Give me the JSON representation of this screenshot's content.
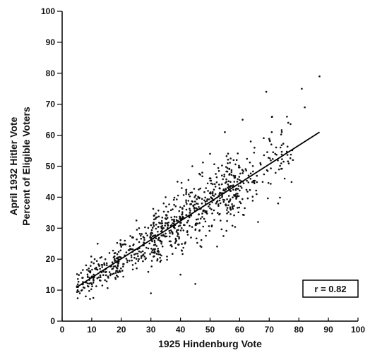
{
  "chart_data": {
    "type": "scatter",
    "title": "",
    "xlabel": "1925 Hindenburg Vote",
    "ylabel_lines": [
      "April 1932 Hitler Vote",
      "Percent of Eligible Voters"
    ],
    "xlim": [
      0,
      100
    ],
    "ylim": [
      0,
      100
    ],
    "xticks": [
      0,
      10,
      20,
      30,
      40,
      50,
      60,
      70,
      80,
      90,
      100
    ],
    "yticks": [
      0,
      10,
      20,
      30,
      40,
      50,
      60,
      70,
      80,
      90,
      100
    ],
    "grid": false,
    "legend": "none",
    "annotation": "r = 0.82",
    "regression_line": {
      "x": [
        5,
        87
      ],
      "y": [
        11,
        61
      ]
    },
    "approx_point_count": 900,
    "points_sample": [
      {
        "x": 5,
        "y": 11
      },
      {
        "x": 6,
        "y": 9
      },
      {
        "x": 7,
        "y": 14
      },
      {
        "x": 8,
        "y": 8
      },
      {
        "x": 9,
        "y": 17
      },
      {
        "x": 10,
        "y": 12
      },
      {
        "x": 11,
        "y": 20
      },
      {
        "x": 12,
        "y": 25
      },
      {
        "x": 14,
        "y": 16
      },
      {
        "x": 16,
        "y": 22
      },
      {
        "x": 18,
        "y": 14
      },
      {
        "x": 20,
        "y": 24
      },
      {
        "x": 22,
        "y": 19
      },
      {
        "x": 24,
        "y": 27
      },
      {
        "x": 26,
        "y": 30
      },
      {
        "x": 28,
        "y": 22
      },
      {
        "x": 30,
        "y": 9
      },
      {
        "x": 31,
        "y": 34
      },
      {
        "x": 33,
        "y": 26
      },
      {
        "x": 35,
        "y": 40
      },
      {
        "x": 37,
        "y": 31
      },
      {
        "x": 39,
        "y": 45
      },
      {
        "x": 40,
        "y": 15
      },
      {
        "x": 42,
        "y": 36
      },
      {
        "x": 44,
        "y": 50
      },
      {
        "x": 45,
        "y": 12
      },
      {
        "x": 46,
        "y": 40
      },
      {
        "x": 48,
        "y": 33
      },
      {
        "x": 50,
        "y": 54
      },
      {
        "x": 52,
        "y": 38
      },
      {
        "x": 54,
        "y": 47
      },
      {
        "x": 55,
        "y": 61
      },
      {
        "x": 57,
        "y": 42
      },
      {
        "x": 59,
        "y": 52
      },
      {
        "x": 61,
        "y": 65
      },
      {
        "x": 63,
        "y": 47
      },
      {
        "x": 65,
        "y": 56
      },
      {
        "x": 67,
        "y": 51
      },
      {
        "x": 69,
        "y": 74
      },
      {
        "x": 71,
        "y": 66
      },
      {
        "x": 72,
        "y": 54
      },
      {
        "x": 73,
        "y": 38
      },
      {
        "x": 76,
        "y": 66
      },
      {
        "x": 78,
        "y": 52
      },
      {
        "x": 81,
        "y": 75
      },
      {
        "x": 82,
        "y": 69
      },
      {
        "x": 87,
        "y": 79
      }
    ]
  }
}
